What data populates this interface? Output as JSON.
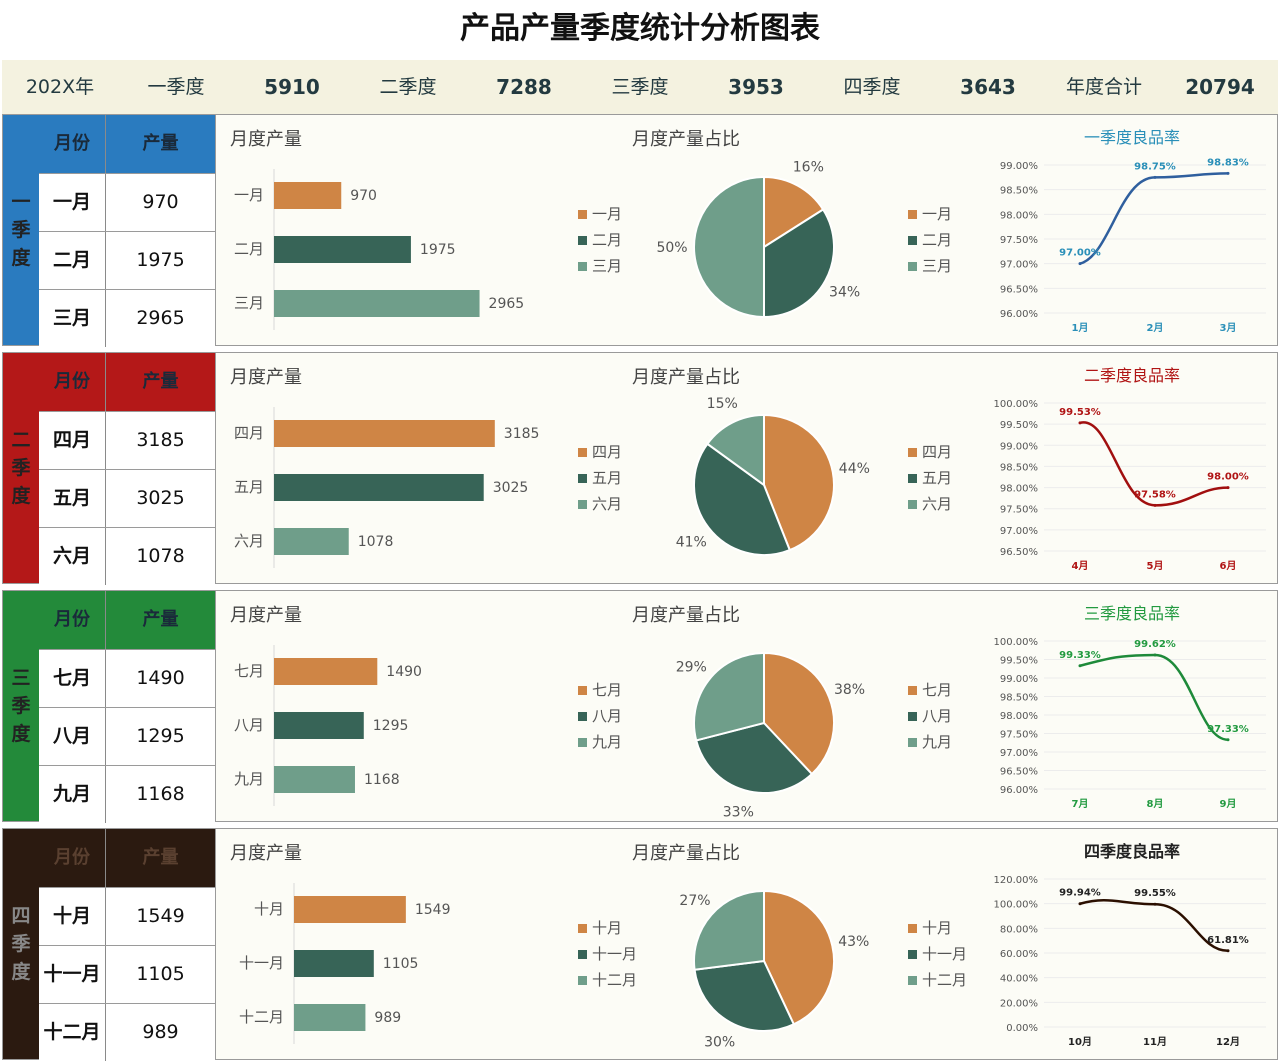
{
  "title": "产品产量季度统计分析图表",
  "summary": {
    "year": "202X年",
    "items": [
      {
        "label": "一季度",
        "value": "5910"
      },
      {
        "label": "二季度",
        "value": "7288"
      },
      {
        "label": "三季度",
        "value": "3953"
      },
      {
        "label": "四季度",
        "value": "3643"
      },
      {
        "label": "年度合计",
        "value": "20794"
      }
    ]
  },
  "table_headers": {
    "month": "月份",
    "output": "产量"
  },
  "chart_titles": {
    "bar": "月度产量",
    "pie": "月度产量占比"
  },
  "colors": {
    "orange": "#cf8545",
    "dark_green": "#376457",
    "light_green": "#6f9e8a"
  },
  "quarters": [
    {
      "id": "q1",
      "label_chars": [
        "一",
        "季",
        "度"
      ],
      "accent": "#2a7bbf",
      "line_color": "#2f5f9e",
      "title_color": "#2a8fb8",
      "rows": [
        {
          "month": "一月",
          "output": "970"
        },
        {
          "month": "二月",
          "output": "1975"
        },
        {
          "month": "三月",
          "output": "2965"
        }
      ]
    },
    {
      "id": "q2",
      "label_chars": [
        "二",
        "季",
        "度"
      ],
      "accent": "#b41818",
      "line_color": "#a10f0f",
      "title_color": "#b01414",
      "rows": [
        {
          "month": "四月",
          "output": "3185"
        },
        {
          "month": "五月",
          "output": "3025"
        },
        {
          "month": "六月",
          "output": "1078"
        }
      ]
    },
    {
      "id": "q3",
      "label_chars": [
        "三",
        "季",
        "度"
      ],
      "accent": "#238a3a",
      "line_color": "#1e8a3a",
      "title_color": "#229a40",
      "rows": [
        {
          "month": "七月",
          "output": "1490"
        },
        {
          "month": "八月",
          "output": "1295"
        },
        {
          "month": "九月",
          "output": "1168"
        }
      ]
    },
    {
      "id": "q4",
      "label_chars": [
        "四",
        "季",
        "度"
      ],
      "accent": "#2b1a10",
      "line_color": "#2b0f00",
      "title_color": "#222222",
      "rows": [
        {
          "month": "十月",
          "output": "1549"
        },
        {
          "month": "十一月",
          "output": "1105"
        },
        {
          "month": "十二月",
          "output": "989"
        }
      ]
    }
  ],
  "chart_data": [
    {
      "type": "bar",
      "title": "月度产量",
      "categories": [
        "一月",
        "二月",
        "三月"
      ],
      "values": [
        970,
        1975,
        2965
      ]
    },
    {
      "type": "pie",
      "title": "月度产量占比",
      "categories": [
        "一月",
        "二月",
        "三月"
      ],
      "values": [
        16,
        34,
        50
      ],
      "unit": "%",
      "legend": "left-and-right"
    },
    {
      "type": "line",
      "title": "一季度良品率",
      "x": [
        "1月",
        "2月",
        "3月"
      ],
      "values": [
        97.0,
        98.75,
        98.83
      ],
      "ylim": [
        96.0,
        99.0
      ],
      "yticks": [
        96.0,
        96.5,
        97.0,
        97.5,
        98.0,
        98.5,
        99.0
      ]
    },
    {
      "type": "bar",
      "title": "月度产量",
      "categories": [
        "四月",
        "五月",
        "六月"
      ],
      "values": [
        3185,
        3025,
        1078
      ]
    },
    {
      "type": "pie",
      "title": "月度产量占比",
      "categories": [
        "四月",
        "五月",
        "六月"
      ],
      "values": [
        44,
        41,
        15
      ],
      "unit": "%",
      "legend": "left-and-right"
    },
    {
      "type": "line",
      "title": "二季度良品率",
      "x": [
        "4月",
        "5月",
        "6月"
      ],
      "values": [
        99.53,
        97.58,
        98.0
      ],
      "ylim": [
        96.5,
        100.0
      ],
      "yticks": [
        96.5,
        97.0,
        97.5,
        98.0,
        98.5,
        99.0,
        99.5,
        100.0
      ]
    },
    {
      "type": "bar",
      "title": "月度产量",
      "categories": [
        "七月",
        "八月",
        "九月"
      ],
      "values": [
        1490,
        1295,
        1168
      ]
    },
    {
      "type": "pie",
      "title": "月度产量占比",
      "categories": [
        "七月",
        "八月",
        "九月"
      ],
      "values": [
        38,
        33,
        29
      ],
      "unit": "%",
      "legend": "left-and-right"
    },
    {
      "type": "line",
      "title": "三季度良品率",
      "x": [
        "7月",
        "8月",
        "9月"
      ],
      "values": [
        99.33,
        99.62,
        97.33
      ],
      "ylim": [
        96.0,
        100.0
      ],
      "yticks": [
        96.0,
        96.5,
        97.0,
        97.5,
        98.0,
        98.5,
        99.0,
        99.5,
        100.0
      ]
    },
    {
      "type": "bar",
      "title": "月度产量",
      "categories": [
        "十月",
        "十一月",
        "十二月"
      ],
      "values": [
        1549,
        1105,
        989
      ]
    },
    {
      "type": "pie",
      "title": "月度产量占比",
      "categories": [
        "十月",
        "十一月",
        "十二月"
      ],
      "values": [
        43,
        30,
        27
      ],
      "unit": "%",
      "legend": "left-and-right"
    },
    {
      "type": "line",
      "title": "四季度良品率",
      "x": [
        "10月",
        "11月",
        "12月"
      ],
      "values": [
        99.94,
        99.55,
        61.81
      ],
      "ylim": [
        0.0,
        120.0
      ],
      "yticks": [
        0,
        20,
        40,
        60,
        80,
        100,
        120
      ]
    }
  ]
}
